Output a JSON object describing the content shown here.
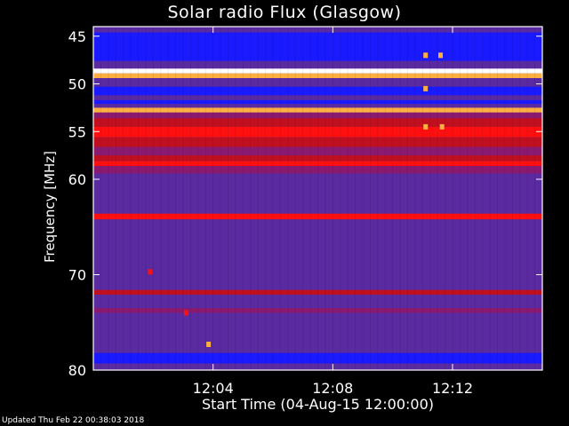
{
  "chart_data": {
    "type": "heatmap",
    "title": "Solar radio Flux (Glasgow)",
    "ylabel": "Frequency [MHz]",
    "xlabel": "Start Time (04-Aug-15 12:00:00)",
    "ylim": [
      80,
      44
    ],
    "xlim_minutes": [
      0,
      15
    ],
    "y_ticks": [
      45,
      50,
      55,
      60,
      70,
      80
    ],
    "x_ticks": [
      {
        "label": "12:04",
        "minute": 4
      },
      {
        "label": "12:08",
        "minute": 8
      },
      {
        "label": "12:12",
        "minute": 12
      }
    ],
    "colormap": [
      "#1a1aff",
      "#5a2aa0",
      "#8a1a70",
      "#c01020",
      "#ff1010",
      "#ffb040",
      "#ffffff"
    ],
    "bands": [
      {
        "f0": 44.0,
        "f1": 44.6,
        "level": 1
      },
      {
        "f0": 44.6,
        "f1": 47.6,
        "level": 0
      },
      {
        "f0": 47.6,
        "f1": 48.4,
        "level": 1
      },
      {
        "f0": 48.4,
        "f1": 48.9,
        "level": 6
      },
      {
        "f0": 48.9,
        "f1": 49.4,
        "level": 5
      },
      {
        "f0": 49.4,
        "f1": 50.3,
        "level": 1
      },
      {
        "f0": 50.3,
        "f1": 51.2,
        "level": 0
      },
      {
        "f0": 51.2,
        "f1": 51.7,
        "level": 1
      },
      {
        "f0": 51.7,
        "f1": 52.1,
        "level": 0
      },
      {
        "f0": 52.1,
        "f1": 52.5,
        "level": 1
      },
      {
        "f0": 52.5,
        "f1": 53.0,
        "level": 5
      },
      {
        "f0": 53.0,
        "f1": 53.6,
        "level": 2
      },
      {
        "f0": 53.6,
        "f1": 54.5,
        "level": 3
      },
      {
        "f0": 54.5,
        "f1": 55.6,
        "level": 4
      },
      {
        "f0": 55.6,
        "f1": 56.6,
        "level": 3
      },
      {
        "f0": 56.6,
        "f1": 57.5,
        "level": 2
      },
      {
        "f0": 57.5,
        "f1": 58.1,
        "level": 3
      },
      {
        "f0": 58.1,
        "f1": 58.6,
        "level": 4
      },
      {
        "f0": 58.6,
        "f1": 59.4,
        "level": 2
      },
      {
        "f0": 59.4,
        "f1": 63.6,
        "level": 1
      },
      {
        "f0": 63.6,
        "f1": 64.2,
        "level": 4
      },
      {
        "f0": 64.2,
        "f1": 71.6,
        "level": 1
      },
      {
        "f0": 71.6,
        "f1": 72.1,
        "level": 3
      },
      {
        "f0": 72.1,
        "f1": 73.5,
        "level": 1
      },
      {
        "f0": 73.5,
        "f1": 74.0,
        "level": 2
      },
      {
        "f0": 74.0,
        "f1": 78.2,
        "level": 1
      },
      {
        "f0": 78.2,
        "f1": 79.3,
        "level": 0
      },
      {
        "f0": 79.3,
        "f1": 80.0,
        "level": 1
      }
    ],
    "bursts": [
      {
        "minute": 3.85,
        "f": 77.3,
        "level": 5
      },
      {
        "minute": 11.1,
        "f": 47.0,
        "level": 5
      },
      {
        "minute": 11.6,
        "f": 47.0,
        "level": 5
      },
      {
        "minute": 11.1,
        "f": 54.5,
        "level": 5
      },
      {
        "minute": 11.65,
        "f": 54.5,
        "level": 5
      },
      {
        "minute": 11.1,
        "f": 50.5,
        "level": 5
      },
      {
        "minute": 3.1,
        "f": 74.0,
        "level": 4
      },
      {
        "minute": 1.9,
        "f": 69.7,
        "level": 4
      }
    ]
  },
  "footer": {
    "updated": "Updated Thu Feb 22 00:38:03 2018"
  }
}
